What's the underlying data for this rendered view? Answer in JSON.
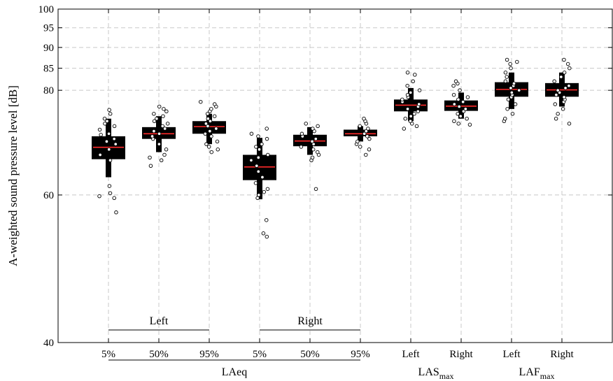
{
  "chart_data": {
    "type": "box",
    "title": "",
    "xlabel": "",
    "ylabel": "A-weighted sound pressure level [dB]",
    "ylim": [
      40,
      100
    ],
    "y_scale": "log",
    "y_ticks": [
      40,
      60,
      80,
      85,
      90,
      95,
      100
    ],
    "grid": true,
    "categories": [
      "5%",
      "50%",
      "95%",
      "5%",
      "50%",
      "95%",
      "Left",
      "Right",
      "Left",
      "Right"
    ],
    "group_labels": [
      {
        "text": "Left",
        "from": 0,
        "to": 2,
        "row": "upper"
      },
      {
        "text": "Right",
        "from": 3,
        "to": 5,
        "row": "upper"
      },
      {
        "text": "LAeq",
        "from": 0,
        "to": 5,
        "row": "lower"
      },
      {
        "text": "LAS",
        "sub": "max",
        "from": 6,
        "to": 7,
        "row": "lower"
      },
      {
        "text": "LAF",
        "sub": "max",
        "from": 8,
        "to": 9,
        "row": "lower"
      }
    ],
    "boxes": [
      {
        "category": "5%",
        "median": 68.4,
        "q1": 66.2,
        "q3": 70.5,
        "whisker_low": 63.0,
        "whisker_high": 74.0
      },
      {
        "category": "50%",
        "median": 71.0,
        "q1": 70.0,
        "q3": 72.3,
        "whisker_low": 67.5,
        "whisker_high": 74.5
      },
      {
        "category": "95%",
        "median": 72.4,
        "q1": 71.0,
        "q3": 73.5,
        "whisker_low": 69.0,
        "whisker_high": 75.0
      },
      {
        "category": "5%",
        "median": 64.8,
        "q1": 62.5,
        "q3": 67.0,
        "whisker_low": 59.3,
        "whisker_high": 70.2
      },
      {
        "category": "50%",
        "median": 69.6,
        "q1": 68.6,
        "q3": 70.8,
        "whisker_low": 67.0,
        "whisker_high": 72.3
      },
      {
        "category": "95%",
        "median": 71.0,
        "q1": 70.5,
        "q3": 71.8,
        "whisker_low": 69.5,
        "whisker_high": 72.5
      },
      {
        "category": "Left",
        "median": 76.8,
        "q1": 75.5,
        "q3": 78.0,
        "whisker_low": 73.5,
        "whisker_high": 80.5
      },
      {
        "category": "Right",
        "median": 76.6,
        "q1": 75.6,
        "q3": 77.8,
        "whisker_low": 74.0,
        "whisker_high": 79.5
      },
      {
        "category": "Left",
        "median": 80.2,
        "q1": 78.6,
        "q3": 81.8,
        "whisker_low": 76.0,
        "whisker_high": 84.0
      },
      {
        "category": "Right",
        "median": 80.1,
        "q1": 78.6,
        "q3": 81.6,
        "whisker_low": 76.5,
        "whisker_high": 84.0
      }
    ],
    "points": [
      [
        57.2,
        59.5,
        59.8,
        60.3,
        61.5,
        66.0,
        67.0,
        68.0,
        69.0,
        69.5,
        70.0,
        70.8,
        71.0,
        71.8,
        72.5,
        73.0,
        73.5,
        74.0,
        75.0,
        75.8
      ],
      [
        65.0,
        66.0,
        66.5,
        67.0,
        68.0,
        69.0,
        70.0,
        70.5,
        71.0,
        71.5,
        72.0,
        72.5,
        73.0,
        73.5,
        74.0,
        74.5,
        75.0,
        75.5,
        76.0,
        76.5
      ],
      [
        67.5,
        68.0,
        68.5,
        69.0,
        69.5,
        70.5,
        71.0,
        71.5,
        72.0,
        72.5,
        73.0,
        73.5,
        74.0,
        74.5,
        75.0,
        75.5,
        76.0,
        76.5,
        77.0,
        77.5
      ],
      [
        53.5,
        54.0,
        56.0,
        59.5,
        60.0,
        60.5,
        61.0,
        62.0,
        63.0,
        64.0,
        65.0,
        66.0,
        66.5,
        67.0,
        68.0,
        68.5,
        69.0,
        70.0,
        70.5,
        71.0,
        72.0
      ],
      [
        61.0,
        66.0,
        66.5,
        67.0,
        67.5,
        68.0,
        68.5,
        69.0,
        69.5,
        70.0,
        70.5,
        71.0,
        71.5,
        72.0,
        72.5,
        73.0
      ],
      [
        67.0,
        68.0,
        68.5,
        69.0,
        69.5,
        70.0,
        70.5,
        71.0,
        71.5,
        72.0,
        72.5,
        73.0,
        73.5,
        74.0
      ],
      [
        72.0,
        72.5,
        73.0,
        73.5,
        74.0,
        74.5,
        75.0,
        75.5,
        76.0,
        76.5,
        77.0,
        77.5,
        78.0,
        78.5,
        79.0,
        79.5,
        80.0,
        81.0,
        82.0,
        83.5,
        84.0
      ],
      [
        72.8,
        73.0,
        73.5,
        74.0,
        74.5,
        75.0,
        75.5,
        76.0,
        76.5,
        77.0,
        77.5,
        78.0,
        78.5,
        79.0,
        80.0,
        81.0,
        81.5,
        82.0
      ],
      [
        73.5,
        74.0,
        75.0,
        76.0,
        77.0,
        78.0,
        78.5,
        79.0,
        79.5,
        80.0,
        80.5,
        81.0,
        81.5,
        82.0,
        83.0,
        84.0,
        85.0,
        86.0,
        86.5,
        87.0
      ],
      [
        73.0,
        74.0,
        75.0,
        76.0,
        77.0,
        77.5,
        78.0,
        78.5,
        79.0,
        79.5,
        80.0,
        80.5,
        81.0,
        82.0,
        83.0,
        84.0,
        85.0,
        86.0,
        87.0
      ]
    ],
    "colors": {
      "box": "#000000",
      "median": "#ff2a2a",
      "grid": "#c8c8c8",
      "points_fill": "#ffffff",
      "points_stroke": "#000000"
    }
  }
}
